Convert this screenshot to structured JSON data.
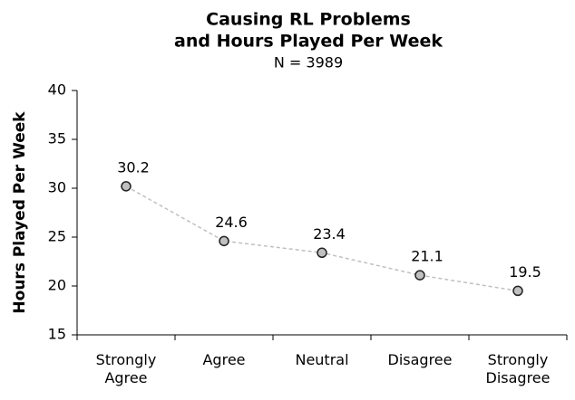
{
  "chart_data": {
    "type": "line",
    "title": [
      "Causing RL Problems",
      "and Hours Played Per Week"
    ],
    "subtitle": "N = 3989",
    "y_label": "Hours Played Per Week",
    "categories": [
      "Strongly Agree",
      "Agree",
      "Neutral",
      "Disagree",
      "Strongly Disagree"
    ],
    "values": [
      30.2,
      24.6,
      23.4,
      21.1,
      19.5
    ],
    "color": "#c0c0c0",
    "ylim": [
      15,
      40
    ],
    "yticks": [
      15,
      20,
      25,
      30,
      35,
      40
    ],
    "grid": false
  }
}
